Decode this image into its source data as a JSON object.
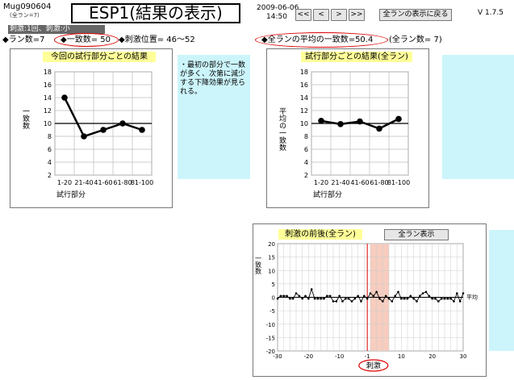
{
  "header": {
    "session_id": "Mug090604",
    "session_sub": "(全ラン=7)",
    "title": "ESP1(結果の表示)",
    "date": "2009-06-06",
    "time": "14:50",
    "nav_first": "<<",
    "nav_prev": "<",
    "nav_next": ">",
    "nav_last": ">>",
    "back_button": "全ランの表示に戻る",
    "version": "V 1.7.5"
  },
  "stimulus_bar": {
    "text": "刺激:1回、刺激:小"
  },
  "info": {
    "runs": "◆ラン数=7",
    "hits": "◆一致数= 50",
    "stim_pos": "◆刺激位置=  46～52",
    "avg_hits": "◆全ランの平均の一致数=50.4",
    "all_runs": "(全ラン数= 7)"
  },
  "left_chart_title": "今回の試行部分ごとの結果",
  "right_chart_title": "試行部分ごとの結果(全ラン)",
  "comment": "・最初の部分で一数が多く、次第に減少する下降効果が見られる。",
  "bottom_chart_title": "刺激の前後(全ラン)",
  "bottom_button": "全ラン表示",
  "chart_data": [
    {
      "type": "line",
      "title": "今回の試行部分ごとの結果",
      "categories": [
        "1-20",
        "21-40",
        "41-60",
        "61-80",
        "81-100"
      ],
      "values": [
        14,
        8,
        9,
        10,
        9
      ],
      "ylabel": "一致数",
      "xlabel": "試行部分",
      "ylim": [
        2,
        18
      ],
      "yticks": [
        2,
        4,
        6,
        8,
        10,
        12,
        14,
        16,
        18
      ],
      "reference_line": 10,
      "grid": true
    },
    {
      "type": "line",
      "title": "試行部分ごとの結果(全ラン)",
      "categories": [
        "1-20",
        "21-40",
        "41-60",
        "61-80",
        "81-100"
      ],
      "values": [
        10.4,
        9.9,
        10.3,
        9.2,
        10.7
      ],
      "ylabel": "平均の一致数",
      "xlabel": "試行部分",
      "ylim": [
        2,
        18
      ],
      "yticks": [
        2,
        4,
        6,
        8,
        10,
        12,
        14,
        16,
        18
      ],
      "reference_line": 10,
      "grid": true
    },
    {
      "type": "line",
      "title": "刺激の前後(全ラン)",
      "x": [
        -30,
        -29,
        -28,
        -27,
        -26,
        -25,
        -24,
        -23,
        -22,
        -21,
        -20,
        -19,
        -18,
        -17,
        -16,
        -15,
        -14,
        -13,
        -12,
        -11,
        -10,
        -9,
        -8,
        -7,
        -6,
        -5,
        -4,
        -3,
        -2,
        -1,
        0,
        1,
        2,
        3,
        4,
        5,
        6,
        7,
        8,
        9,
        10,
        11,
        12,
        13,
        14,
        15,
        16,
        17,
        18,
        19,
        20,
        21,
        22,
        23,
        24,
        25,
        26,
        27,
        28,
        29,
        30
      ],
      "values": [
        -0.5,
        0.5,
        0.5,
        0.5,
        -0.5,
        -0.5,
        1.5,
        0.5,
        -0.5,
        0.5,
        -0.5,
        3,
        -0.5,
        -0.5,
        -0.5,
        -0.5,
        0.5,
        0.5,
        -1.5,
        -1.5,
        0.5,
        -1.5,
        -0.5,
        -0.5,
        -1.5,
        -0.5,
        0.5,
        -1.5,
        0.5,
        -0.5,
        1.5,
        0.5,
        2,
        -0.5,
        -1.5,
        0.5,
        -0.5,
        -1.5,
        0.5,
        2,
        -0.5,
        -0.5,
        -0.5,
        0.5,
        -0.5,
        -1.5,
        0.5,
        1.5,
        2,
        0.5,
        -0.5,
        -0.5,
        -1.5,
        -0.5,
        -0.5,
        -0.5,
        -0.5,
        -1.5,
        1.5,
        -1.5,
        1.5
      ],
      "xlabel": "刺激",
      "ylabel": "一致数",
      "xlim": [
        -30,
        30
      ],
      "xticks": [
        -30,
        -20,
        -10,
        -1,
        10,
        20,
        30
      ],
      "ylim": [
        -20,
        20
      ],
      "yticks": [
        -20,
        -15,
        -10,
        -5,
        0,
        5,
        10,
        15,
        20
      ],
      "reference_label": "平均",
      "highlight_range": [
        0,
        6
      ],
      "marker_line": -1,
      "grid": true
    }
  ]
}
